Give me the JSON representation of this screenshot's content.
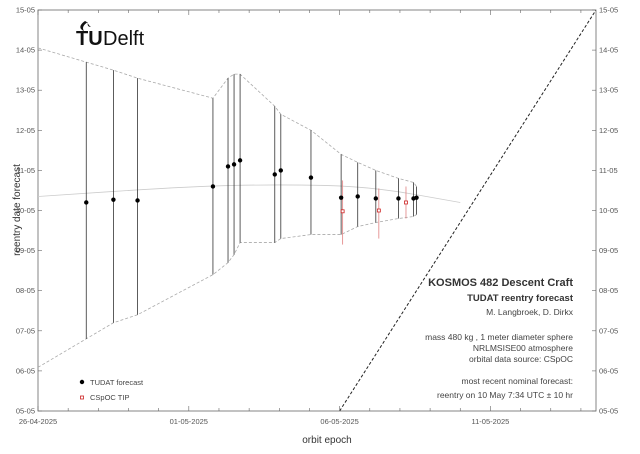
{
  "logo": {
    "brand_text": "TUDelft",
    "part1": "TU",
    "part2": "Delft"
  },
  "chart_data": {
    "type": "scatter",
    "title": "KOSMOS 482 Descent Craft",
    "subtitle": "TUDAT reentry forecast",
    "authors": "M. Langbroek, D. Dirkx",
    "notes": [
      "mass 480 kg , 1 meter diameter sphere",
      "NRLMSISE00 atmosphere",
      "orbital data source:  CSpOC"
    ],
    "forecast_notes": [
      "most recent nominal forecast:",
      "reentry on 10 May 7:34 UTC ± 10 hr"
    ],
    "xlabel": "orbit epoch",
    "ylabel": "reentry date forecast",
    "x_ticks": [
      "26-04-2025",
      "01-05-2025",
      "06-05-2025",
      "11-05-2025"
    ],
    "y_ticks": [
      "05-05",
      "06-05",
      "07-05",
      "08-05",
      "09-05",
      "10-05",
      "11-05",
      "12-05",
      "13-05",
      "14-05",
      "15-05"
    ],
    "xlim_days": [
      0,
      18.5
    ],
    "ylim_days": [
      0,
      10
    ],
    "legend": [
      "TUDAT forecast",
      "CSpOC TIP"
    ],
    "legend_position": "bottom-left",
    "grid": false,
    "tudat_forecast": [
      {
        "epoch_day": 1.6,
        "nominal_day": 5.2,
        "low_day": 1.8,
        "high_day": 8.7
      },
      {
        "epoch_day": 2.5,
        "nominal_day": 5.27,
        "low_day": 2.2,
        "high_day": 8.5
      },
      {
        "epoch_day": 3.3,
        "nominal_day": 5.25,
        "low_day": 2.4,
        "high_day": 8.3
      },
      {
        "epoch_day": 5.8,
        "nominal_day": 5.6,
        "low_day": 3.4,
        "high_day": 7.8
      },
      {
        "epoch_day": 6.3,
        "nominal_day": 6.1,
        "low_day": 3.7,
        "high_day": 8.3
      },
      {
        "epoch_day": 6.5,
        "nominal_day": 6.15,
        "low_day": 3.9,
        "high_day": 8.4
      },
      {
        "epoch_day": 6.7,
        "nominal_day": 6.25,
        "low_day": 4.2,
        "high_day": 8.4
      },
      {
        "epoch_day": 7.85,
        "nominal_day": 5.9,
        "low_day": 4.2,
        "high_day": 7.6
      },
      {
        "epoch_day": 8.05,
        "nominal_day": 6.0,
        "low_day": 4.3,
        "high_day": 7.4
      },
      {
        "epoch_day": 9.05,
        "nominal_day": 5.82,
        "low_day": 4.4,
        "high_day": 7.0
      },
      {
        "epoch_day": 10.05,
        "nominal_day": 5.32,
        "low_day": 4.4,
        "high_day": 6.4
      },
      {
        "epoch_day": 10.6,
        "nominal_day": 5.35,
        "low_day": 4.6,
        "high_day": 6.2
      },
      {
        "epoch_day": 11.2,
        "nominal_day": 5.3,
        "low_day": 4.7,
        "high_day": 6.0
      },
      {
        "epoch_day": 11.95,
        "nominal_day": 5.3,
        "low_day": 4.8,
        "high_day": 5.8
      },
      {
        "epoch_day": 12.45,
        "nominal_day": 5.3,
        "low_day": 4.85,
        "high_day": 5.7
      },
      {
        "epoch_day": 12.55,
        "nominal_day": 5.32,
        "low_day": 4.9,
        "high_day": 5.6
      }
    ],
    "cspoc_tip": [
      {
        "epoch_day": 10.1,
        "nominal_day": 4.98,
        "low_day": 4.15,
        "high_day": 5.75
      },
      {
        "epoch_day": 11.3,
        "nominal_day": 5.0,
        "low_day": 4.3,
        "high_day": 5.55
      },
      {
        "epoch_day": 12.2,
        "nominal_day": 5.2,
        "low_day": 4.8,
        "high_day": 5.6
      }
    ],
    "diagonal_reference": [
      [
        10,
        0
      ],
      [
        18.5,
        10
      ]
    ],
    "trend_curve": [
      [
        0,
        5.35
      ],
      [
        5,
        5.6
      ],
      [
        8,
        5.65
      ],
      [
        11,
        5.6
      ],
      [
        14,
        5.2
      ]
    ],
    "colors": {
      "tudat": "#000000",
      "cspoc": "#cc2222",
      "cspoc_bar": "#e08080",
      "envelope": "#aaaaaa",
      "vertical_bars": "#333333",
      "trend": "#cccccc",
      "diagonal": "#222222",
      "frame": "#666666"
    }
  }
}
